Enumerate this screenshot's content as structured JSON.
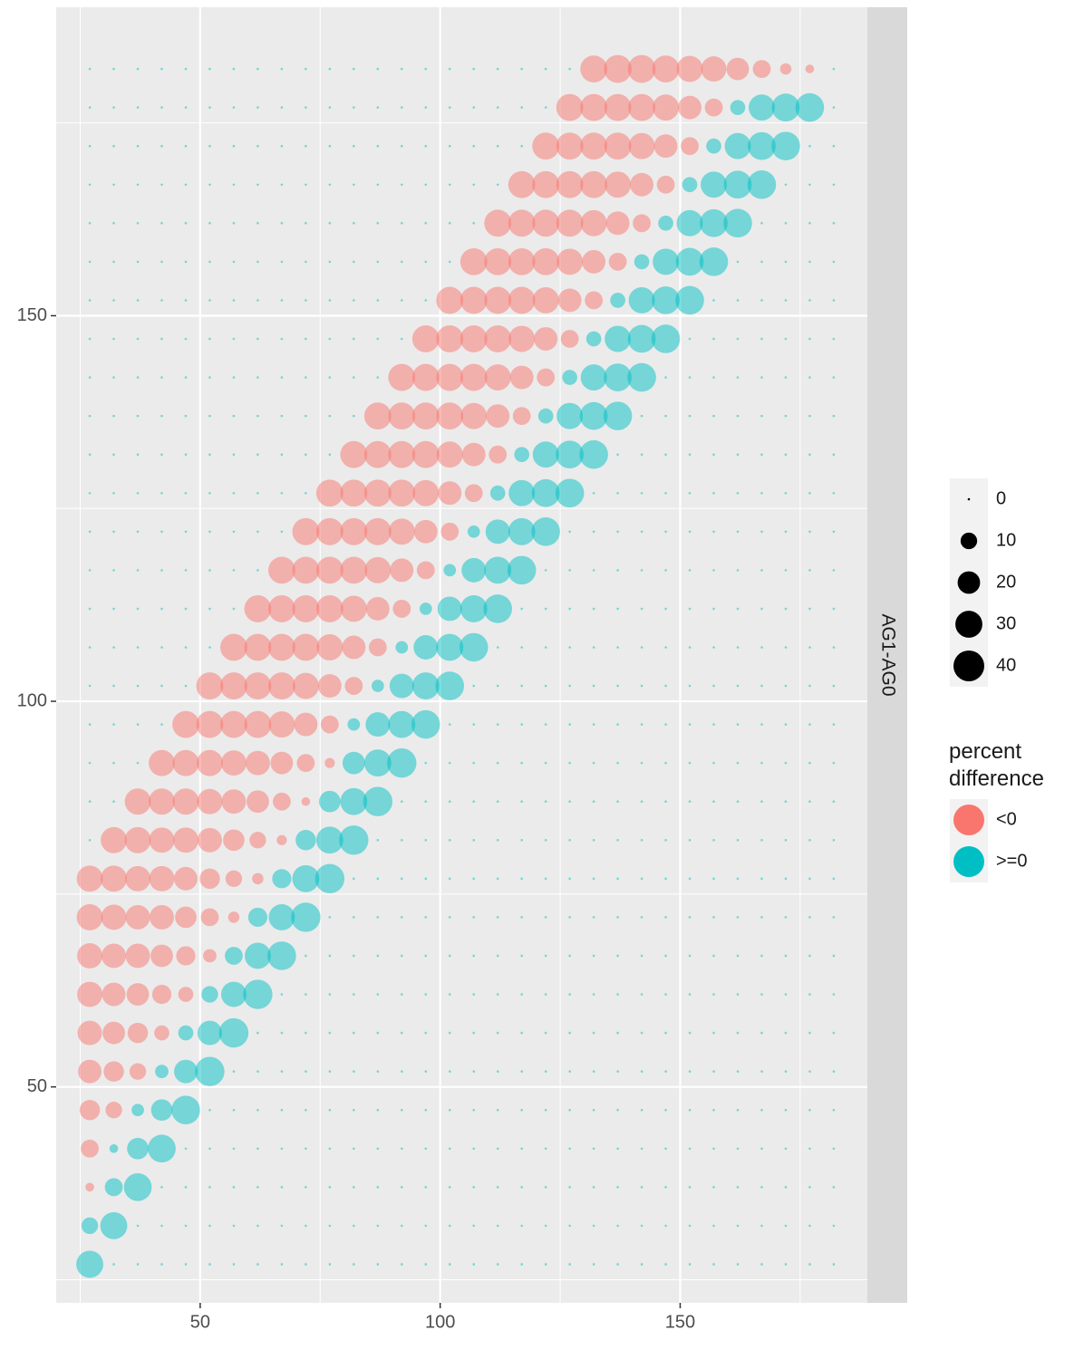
{
  "chart_data": {
    "type": "bubble",
    "facet": "AG1-AG0",
    "x": [
      27,
      32,
      37,
      42,
      47,
      52,
      57,
      62,
      67,
      72,
      77,
      82,
      87,
      92,
      97,
      102,
      107,
      112,
      117,
      122,
      127,
      132,
      137,
      142,
      147,
      152,
      157,
      162,
      167,
      172,
      177,
      182
    ],
    "y": [
      27,
      32,
      37,
      42,
      47,
      52,
      57,
      62,
      67,
      72,
      77,
      82,
      87,
      92,
      97,
      102,
      107,
      112,
      117,
      122,
      127,
      132,
      137,
      142,
      147,
      152,
      157,
      162,
      167,
      172,
      177,
      182
    ],
    "values": [
      [
        30,
        0,
        0,
        0,
        0,
        0,
        0,
        0,
        0,
        0,
        0,
        0,
        0,
        0,
        0,
        0,
        0,
        0,
        0,
        0,
        0,
        0,
        0,
        0,
        0,
        0,
        0,
        0,
        0,
        0,
        0,
        0
      ],
      [
        10,
        30,
        0,
        0,
        0,
        0,
        0,
        0,
        0,
        0,
        0,
        0,
        0,
        0,
        0,
        0,
        0,
        0,
        0,
        0,
        0,
        0,
        0,
        0,
        0,
        0,
        0,
        0,
        0,
        0,
        0,
        0
      ],
      [
        -2,
        12,
        32,
        0,
        0,
        0,
        0,
        0,
        0,
        0,
        0,
        0,
        0,
        0,
        0,
        0,
        0,
        0,
        0,
        0,
        0,
        0,
        0,
        0,
        0,
        0,
        0,
        0,
        0,
        0,
        0,
        0
      ],
      [
        -12,
        2,
        18,
        32,
        0,
        0,
        0,
        0,
        0,
        0,
        0,
        0,
        0,
        0,
        0,
        0,
        0,
        0,
        0,
        0,
        0,
        0,
        0,
        0,
        0,
        0,
        0,
        0,
        0,
        0,
        0,
        0
      ],
      [
        -16,
        -10,
        5,
        18,
        34,
        0,
        0,
        0,
        0,
        0,
        0,
        0,
        0,
        0,
        0,
        0,
        0,
        0,
        0,
        0,
        0,
        0,
        0,
        0,
        0,
        0,
        0,
        0,
        0,
        0,
        0,
        0
      ],
      [
        -22,
        -16,
        -10,
        6,
        22,
        36,
        0,
        0,
        0,
        0,
        0,
        0,
        0,
        0,
        0,
        0,
        0,
        0,
        0,
        0,
        0,
        0,
        0,
        0,
        0,
        0,
        0,
        0,
        0,
        0,
        0,
        0
      ],
      [
        -24,
        -20,
        -16,
        -8,
        8,
        24,
        36,
        0,
        0,
        0,
        0,
        0,
        0,
        0,
        0,
        0,
        0,
        0,
        0,
        0,
        0,
        0,
        0,
        0,
        0,
        0,
        0,
        0,
        0,
        0,
        0,
        0
      ],
      [
        -26,
        -22,
        -20,
        -14,
        -8,
        10,
        26,
        36,
        0,
        0,
        0,
        0,
        0,
        0,
        0,
        0,
        0,
        0,
        0,
        0,
        0,
        0,
        0,
        0,
        0,
        0,
        0,
        0,
        0,
        0,
        0,
        0
      ],
      [
        -26,
        -24,
        -24,
        -20,
        -14,
        -6,
        12,
        28,
        34,
        0,
        0,
        0,
        0,
        0,
        0,
        0,
        0,
        0,
        0,
        0,
        0,
        0,
        0,
        0,
        0,
        0,
        0,
        0,
        0,
        0,
        0,
        0
      ],
      [
        -28,
        -26,
        -24,
        -24,
        -18,
        -12,
        -4,
        14,
        28,
        36,
        0,
        0,
        0,
        0,
        0,
        0,
        0,
        0,
        0,
        0,
        0,
        0,
        0,
        0,
        0,
        0,
        0,
        0,
        0,
        0,
        0,
        0
      ],
      [
        -28,
        -28,
        -26,
        -26,
        -22,
        -16,
        -10,
        -4,
        14,
        30,
        36,
        0,
        0,
        0,
        0,
        0,
        0,
        0,
        0,
        0,
        0,
        0,
        0,
        0,
        0,
        0,
        0,
        0,
        0,
        0,
        0,
        0
      ],
      [
        0,
        -28,
        -28,
        -26,
        -26,
        -24,
        -18,
        -10,
        -3,
        16,
        30,
        36,
        0,
        0,
        0,
        0,
        0,
        0,
        0,
        0,
        0,
        0,
        0,
        0,
        0,
        0,
        0,
        0,
        0,
        0,
        0,
        0
      ],
      [
        0,
        0,
        -28,
        -28,
        -28,
        -26,
        -24,
        -20,
        -12,
        -2,
        18,
        30,
        36,
        0,
        0,
        0,
        0,
        0,
        0,
        0,
        0,
        0,
        0,
        0,
        0,
        0,
        0,
        0,
        0,
        0,
        0,
        0
      ],
      [
        0,
        0,
        0,
        -28,
        -28,
        -28,
        -26,
        -24,
        -20,
        -12,
        -3,
        20,
        30,
        36,
        0,
        0,
        0,
        0,
        0,
        0,
        0,
        0,
        0,
        0,
        0,
        0,
        0,
        0,
        0,
        0,
        0,
        0
      ],
      [
        0,
        0,
        0,
        0,
        -30,
        -30,
        -30,
        -30,
        -28,
        -22,
        -12,
        5,
        24,
        30,
        34,
        0,
        0,
        0,
        0,
        0,
        0,
        0,
        0,
        0,
        0,
        0,
        0,
        0,
        0,
        0,
        0,
        0
      ],
      [
        0,
        0,
        0,
        0,
        0,
        -30,
        -30,
        -30,
        -30,
        -28,
        -22,
        -12,
        5,
        24,
        30,
        34,
        0,
        0,
        0,
        0,
        0,
        0,
        0,
        0,
        0,
        0,
        0,
        0,
        0,
        0,
        0,
        0
      ],
      [
        0,
        0,
        0,
        0,
        0,
        0,
        -30,
        -30,
        -30,
        -30,
        -28,
        -22,
        -12,
        5,
        24,
        30,
        34,
        0,
        0,
        0,
        0,
        0,
        0,
        0,
        0,
        0,
        0,
        0,
        0,
        0,
        0,
        0
      ],
      [
        0,
        0,
        0,
        0,
        0,
        0,
        0,
        -30,
        -30,
        -30,
        -30,
        -28,
        -22,
        -12,
        5,
        24,
        30,
        34,
        0,
        0,
        0,
        0,
        0,
        0,
        0,
        0,
        0,
        0,
        0,
        0,
        0,
        0
      ],
      [
        0,
        0,
        0,
        0,
        0,
        0,
        0,
        0,
        -30,
        -30,
        -30,
        -30,
        -28,
        -22,
        -12,
        5,
        24,
        30,
        34,
        0,
        0,
        0,
        0,
        0,
        0,
        0,
        0,
        0,
        0,
        0,
        0,
        0
      ],
      [
        0,
        0,
        0,
        0,
        0,
        0,
        0,
        0,
        0,
        -30,
        -30,
        -30,
        -30,
        -28,
        -22,
        -12,
        5,
        24,
        30,
        34,
        0,
        0,
        0,
        0,
        0,
        0,
        0,
        0,
        0,
        0,
        0,
        0
      ],
      [
        0,
        0,
        0,
        0,
        0,
        0,
        0,
        0,
        0,
        0,
        -30,
        -30,
        -30,
        -30,
        -28,
        -22,
        -12,
        8,
        28,
        32,
        34,
        0,
        0,
        0,
        0,
        0,
        0,
        0,
        0,
        0,
        0,
        0
      ],
      [
        0,
        0,
        0,
        0,
        0,
        0,
        0,
        0,
        0,
        0,
        0,
        -30,
        -30,
        -30,
        -30,
        -28,
        -22,
        -12,
        8,
        28,
        32,
        34,
        0,
        0,
        0,
        0,
        0,
        0,
        0,
        0,
        0,
        0
      ],
      [
        0,
        0,
        0,
        0,
        0,
        0,
        0,
        0,
        0,
        0,
        0,
        0,
        -30,
        -30,
        -30,
        -30,
        -28,
        -22,
        -12,
        8,
        28,
        32,
        34,
        0,
        0,
        0,
        0,
        0,
        0,
        0,
        0,
        0
      ],
      [
        0,
        0,
        0,
        0,
        0,
        0,
        0,
        0,
        0,
        0,
        0,
        0,
        0,
        -30,
        -30,
        -30,
        -30,
        -28,
        -22,
        -12,
        8,
        28,
        32,
        34,
        0,
        0,
        0,
        0,
        0,
        0,
        0,
        0
      ],
      [
        0,
        0,
        0,
        0,
        0,
        0,
        0,
        0,
        0,
        0,
        0,
        0,
        0,
        0,
        -30,
        -30,
        -30,
        -30,
        -28,
        -22,
        -12,
        8,
        28,
        32,
        34,
        0,
        0,
        0,
        0,
        0,
        0,
        0
      ],
      [
        0,
        0,
        0,
        0,
        0,
        0,
        0,
        0,
        0,
        0,
        0,
        0,
        0,
        0,
        0,
        -30,
        -30,
        -30,
        -30,
        -28,
        -22,
        -12,
        8,
        28,
        32,
        34,
        0,
        0,
        0,
        0,
        0,
        0
      ],
      [
        0,
        0,
        0,
        0,
        0,
        0,
        0,
        0,
        0,
        0,
        0,
        0,
        0,
        0,
        0,
        0,
        -30,
        -30,
        -30,
        -30,
        -28,
        -22,
        -12,
        8,
        28,
        32,
        34,
        0,
        0,
        0,
        0,
        0
      ],
      [
        0,
        0,
        0,
        0,
        0,
        0,
        0,
        0,
        0,
        0,
        0,
        0,
        0,
        0,
        0,
        0,
        0,
        -30,
        -30,
        -30,
        -30,
        -28,
        -22,
        -12,
        8,
        28,
        32,
        34,
        0,
        0,
        0,
        0
      ],
      [
        0,
        0,
        0,
        0,
        0,
        0,
        0,
        0,
        0,
        0,
        0,
        0,
        0,
        0,
        0,
        0,
        0,
        0,
        -30,
        -30,
        -30,
        -30,
        -28,
        -22,
        -12,
        8,
        28,
        32,
        34,
        0,
        0,
        0
      ],
      [
        0,
        0,
        0,
        0,
        0,
        0,
        0,
        0,
        0,
        0,
        0,
        0,
        0,
        0,
        0,
        0,
        0,
        0,
        0,
        -30,
        -30,
        -30,
        -30,
        -28,
        -22,
        -12,
        8,
        28,
        32,
        34,
        0,
        0
      ],
      [
        0,
        0,
        0,
        0,
        0,
        0,
        0,
        0,
        0,
        0,
        0,
        0,
        0,
        0,
        0,
        0,
        0,
        0,
        0,
        0,
        -30,
        -30,
        -30,
        -30,
        -28,
        -22,
        -12,
        8,
        28,
        32,
        34,
        0
      ],
      [
        0,
        0,
        0,
        0,
        0,
        0,
        0,
        0,
        0,
        0,
        0,
        0,
        0,
        0,
        0,
        0,
        0,
        0,
        0,
        0,
        0,
        -30,
        -32,
        -32,
        -30,
        -28,
        -26,
        -20,
        -12,
        -4,
        -2,
        0
      ]
    ],
    "xlim": [
      20,
      189
    ],
    "xticks": [
      50,
      100,
      150
    ],
    "ylim": [
      22,
      190
    ],
    "yticks": [
      50,
      100,
      150
    ],
    "grid": true,
    "alpha": 0.5,
    "size_ticks": [
      0,
      10,
      20,
      30,
      40
    ],
    "color_legend_title": "percent difference",
    "groups": [
      {
        "name": "<0",
        "color": "#F8766D"
      },
      {
        "name": ">=0",
        "color": "#00BFC4"
      }
    ]
  }
}
